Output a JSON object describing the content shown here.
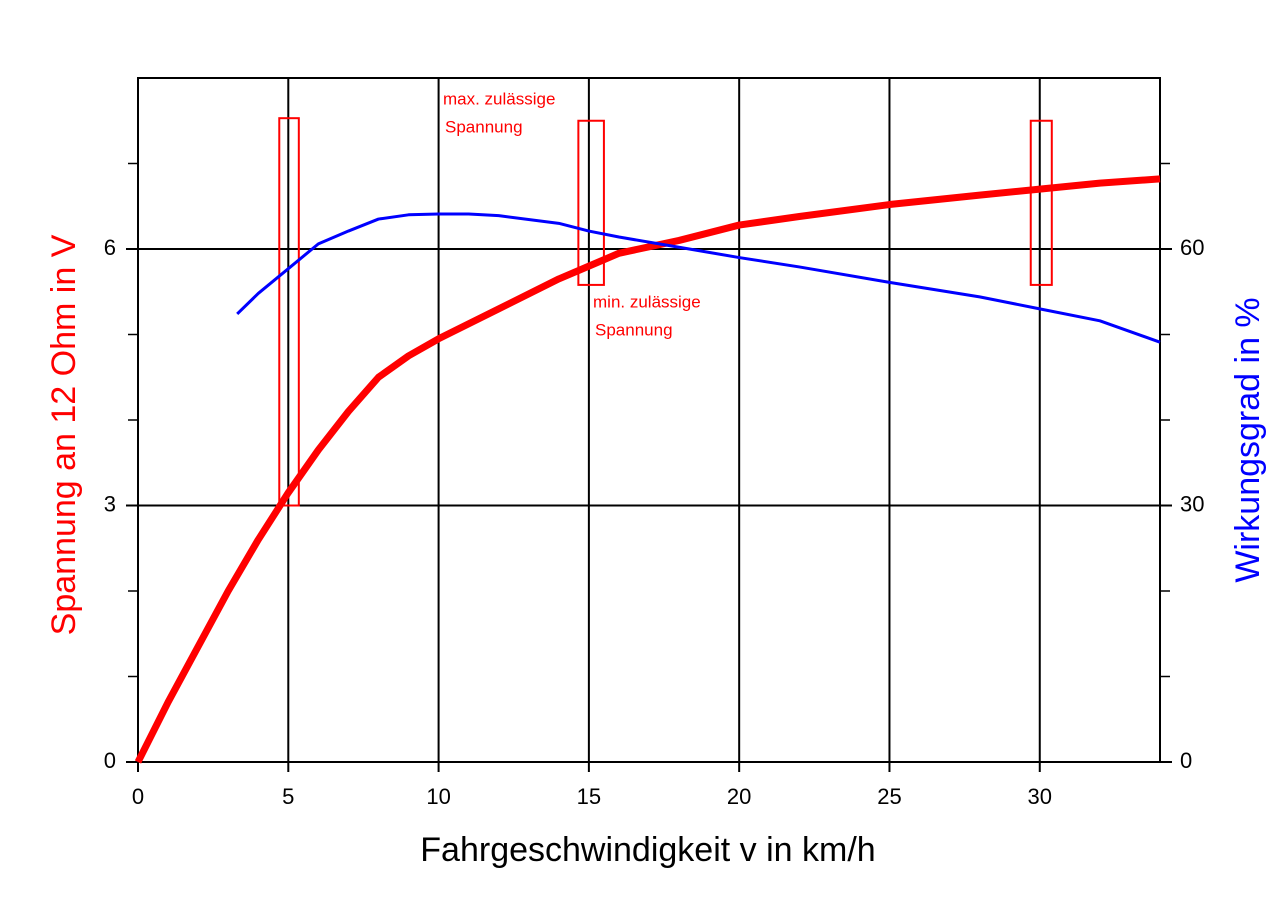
{
  "chart_data": {
    "type": "line",
    "xlabel": "Fahrgeschwindigkeit v in km/h",
    "ylabel": "Spannung an 12 Ohm in V",
    "y2label": "Wirkungsgrad in %",
    "xlim": [
      0,
      34
    ],
    "xticks": [
      0,
      5,
      10,
      15,
      20,
      25,
      30
    ],
    "ylim": [
      0,
      8
    ],
    "yticks": [
      0,
      3,
      6
    ],
    "yminorticks": [
      1,
      2,
      4,
      5,
      7
    ],
    "y2lim": [
      0,
      80
    ],
    "y2ticks": [
      0,
      30,
      60
    ],
    "y2minorticks": [
      10,
      20,
      40,
      50,
      70
    ],
    "grid": true,
    "series": [
      {
        "name": "Spannung",
        "color": "#ff0000",
        "axis": "y",
        "x": [
          0,
          1,
          2,
          3,
          4,
          5,
          6,
          7,
          8,
          9,
          10,
          12,
          14,
          15,
          16,
          18,
          20,
          22,
          25,
          28,
          30,
          32,
          34
        ],
        "values": [
          0,
          0.7,
          1.35,
          2.0,
          2.6,
          3.15,
          3.65,
          4.1,
          4.5,
          4.75,
          4.95,
          5.3,
          5.65,
          5.8,
          5.95,
          6.1,
          6.28,
          6.38,
          6.52,
          6.63,
          6.7,
          6.77,
          6.82
        ]
      },
      {
        "name": "Wirkungsgrad",
        "color": "#0000ff",
        "axis": "y2",
        "x": [
          3.3,
          4,
          5,
          6,
          7,
          8,
          9,
          10,
          11,
          12,
          14,
          15,
          16,
          18,
          20,
          22,
          25,
          28,
          30,
          32,
          34
        ],
        "values": [
          52.4,
          54.8,
          57.7,
          60.6,
          62.1,
          63.5,
          64,
          64.1,
          64.1,
          63.9,
          63,
          62.1,
          61.4,
          60.2,
          59,
          57.9,
          56.1,
          54.4,
          53,
          51.6,
          49.1
        ]
      }
    ],
    "boxes": [
      {
        "x": [
          4.7,
          5.35
        ],
        "y": [
          3.0,
          7.53
        ]
      },
      {
        "x": [
          14.65,
          15.5
        ],
        "y": [
          5.58,
          7.5
        ]
      },
      {
        "x": [
          29.7,
          30.4
        ],
        "y": [
          5.58,
          7.5
        ]
      }
    ],
    "annotations": [
      {
        "lines": [
          "max. zulässige",
          "Spannung"
        ]
      },
      {
        "lines": [
          "min. zulässige",
          "Spannung"
        ]
      }
    ]
  }
}
